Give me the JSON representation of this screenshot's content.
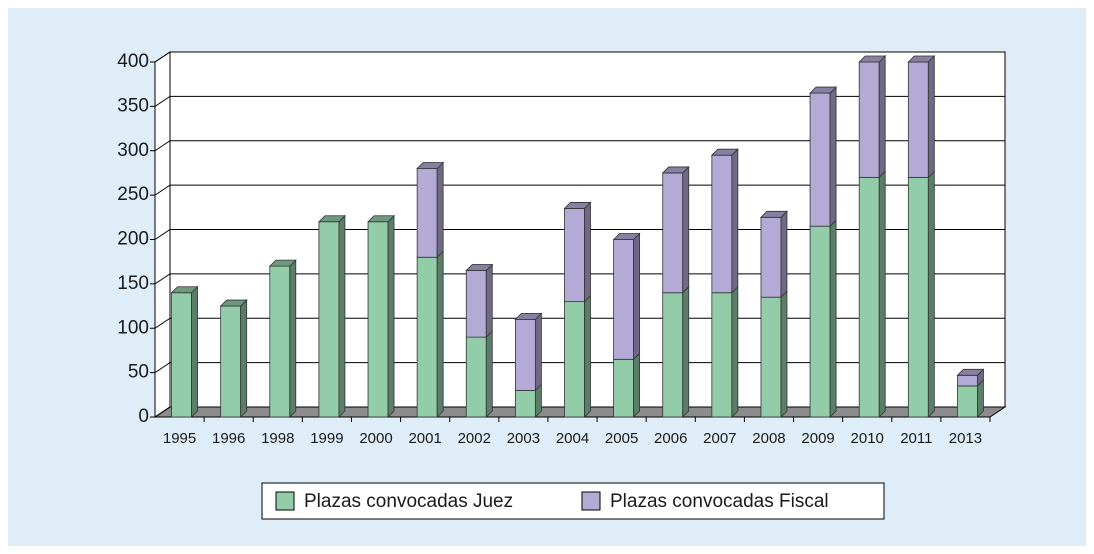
{
  "chart_data": {
    "type": "bar3d_stacked",
    "categories": [
      "1995",
      "1996",
      "1998",
      "1999",
      "2000",
      "2001",
      "2002",
      "2003",
      "2004",
      "2005",
      "2006",
      "2007",
      "2008",
      "2009",
      "2010",
      "2011",
      "2013"
    ],
    "series": [
      {
        "name": "Plazas convocadas Juez",
        "color": "#93cca8",
        "values": [
          140,
          125,
          170,
          220,
          220,
          180,
          90,
          30,
          130,
          65,
          140,
          140,
          135,
          215,
          270,
          270,
          35
        ]
      },
      {
        "name": "Plazas convocadas Fiscal",
        "color": "#b3aad6",
        "values": [
          0,
          0,
          0,
          0,
          0,
          100,
          75,
          80,
          105,
          135,
          135,
          155,
          90,
          150,
          130,
          130,
          12
        ]
      }
    ],
    "ylim": [
      0,
      400
    ],
    "yticks": [
      0,
      50,
      100,
      150,
      200,
      250,
      300,
      350,
      400
    ],
    "grid": true,
    "legend": "bottom"
  }
}
